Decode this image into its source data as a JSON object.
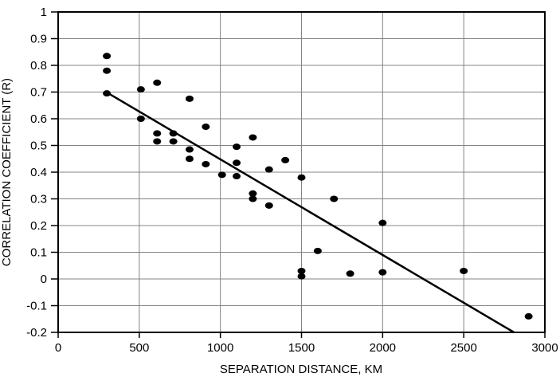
{
  "figure": {
    "background": "#ffffff"
  },
  "chart_data": {
    "type": "scatter",
    "title": "",
    "xlabel": "SEPARATION DISTANCE, KM",
    "ylabel": "CORRELATION COEFFICIENT (R)",
    "xlim": [
      0,
      3000
    ],
    "ylim": [
      -0.2,
      1
    ],
    "grid": true,
    "legend_position": "none",
    "x_ticks": [
      {
        "value": 0,
        "label": "0"
      },
      {
        "value": 500,
        "label": "500"
      },
      {
        "value": 1000,
        "label": "1000"
      },
      {
        "value": 1500,
        "label": "1500"
      },
      {
        "value": 2000,
        "label": "2000"
      },
      {
        "value": 2500,
        "label": "2500"
      },
      {
        "value": 3000,
        "label": "3000"
      }
    ],
    "y_ticks": [
      {
        "value": 1,
        "label": "1"
      },
      {
        "value": 0.9,
        "label": "0.9"
      },
      {
        "value": 0.8,
        "label": "0.8"
      },
      {
        "value": 0.7,
        "label": "0.7"
      },
      {
        "value": 0.6,
        "label": "0.6"
      },
      {
        "value": 0.5,
        "label": "0.5"
      },
      {
        "value": 0.4,
        "label": "0.4"
      },
      {
        "value": 0.3,
        "label": "0.3"
      },
      {
        "value": 0.2,
        "label": "0.2"
      },
      {
        "value": 0.1,
        "label": "0.1"
      },
      {
        "value": 0,
        "label": "0"
      },
      {
        "value": -0.1,
        "label": "-0.1"
      },
      {
        "value": -0.2,
        "label": "-0.2"
      }
    ],
    "points": [
      [
        300,
        0.835
      ],
      [
        300,
        0.78
      ],
      [
        300,
        0.695
      ],
      [
        510,
        0.71
      ],
      [
        510,
        0.6
      ],
      [
        610,
        0.735
      ],
      [
        610,
        0.545
      ],
      [
        610,
        0.515
      ],
      [
        710,
        0.545
      ],
      [
        710,
        0.515
      ],
      [
        810,
        0.675
      ],
      [
        810,
        0.485
      ],
      [
        810,
        0.45
      ],
      [
        910,
        0.57
      ],
      [
        910,
        0.43
      ],
      [
        1010,
        0.39
      ],
      [
        1100,
        0.495
      ],
      [
        1100,
        0.435
      ],
      [
        1100,
        0.385
      ],
      [
        1200,
        0.53
      ],
      [
        1200,
        0.32
      ],
      [
        1200,
        0.3
      ],
      [
        1300,
        0.41
      ],
      [
        1300,
        0.275
      ],
      [
        1400,
        0.445
      ],
      [
        1500,
        0.38
      ],
      [
        1500,
        0.03
      ],
      [
        1500,
        0.01
      ],
      [
        1600,
        0.105
      ],
      [
        1700,
        0.3
      ],
      [
        1800,
        0.02
      ],
      [
        2000,
        0.21
      ],
      [
        2000,
        0.025
      ],
      [
        2500,
        0.03
      ],
      [
        2900,
        -0.14
      ]
    ],
    "trend_line": {
      "x1": 310,
      "y1": 0.695,
      "x2": 2810,
      "y2": -0.2
    },
    "colors": {
      "point": "#000000",
      "trend_line": "#000000",
      "grid": "#848484",
      "axis": "#000000",
      "text": "#000000",
      "background": "#ffffff"
    }
  }
}
